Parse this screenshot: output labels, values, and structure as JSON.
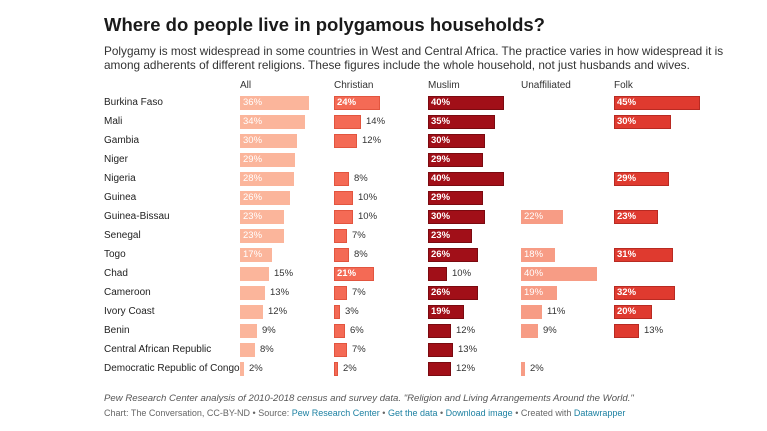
{
  "title": "Where do people live in polygamous households?",
  "subtitle": "Polygamy is most widespread in some countries in West and Central Africa. The practice varies in how widespread it is among adherents of different religions. These figures include the whole household, not just husbands and wives.",
  "notes": "Pew Research Center analysis of 2010-2018 census and survey data. \"Religion and Living Arrangements Around the World.\"",
  "credits": {
    "prefix": "Chart: The Conversation, CC-BY-ND • Source: ",
    "source_link": "Pew Research Center",
    "sep1": " • ",
    "get_data": "Get the data",
    "sep2": " • ",
    "download": "Download image",
    "sep3": " • Created with ",
    "datawrapper": "Datawrapper"
  },
  "colors": {
    "All": "#fbb59b",
    "Christian": "#f46a55",
    "Muslim": "#a10f18",
    "Unaffiliated": "#f79c85",
    "Folk": "#df3a2f",
    "link": "#1d81a2"
  },
  "chart_data": {
    "type": "bar",
    "unit": "%",
    "categories": [
      "Burkina Faso",
      "Mali",
      "Gambia",
      "Niger",
      "Nigeria",
      "Guinea",
      "Guinea-Bissau",
      "Senegal",
      "Togo",
      "Chad",
      "Cameroon",
      "Ivory Coast",
      "Benin",
      "Central African Republic",
      "Democratic Republic of Congo"
    ],
    "series": [
      {
        "name": "All",
        "values": [
          36,
          34,
          30,
          29,
          28,
          26,
          23,
          23,
          17,
          15,
          13,
          12,
          9,
          8,
          2
        ]
      },
      {
        "name": "Christian",
        "values": [
          24,
          14,
          12,
          null,
          8,
          10,
          10,
          7,
          8,
          21,
          7,
          3,
          6,
          7,
          2
        ]
      },
      {
        "name": "Muslim",
        "values": [
          40,
          35,
          30,
          29,
          40,
          29,
          30,
          23,
          26,
          10,
          26,
          19,
          12,
          13,
          12
        ]
      },
      {
        "name": "Unaffiliated",
        "values": [
          null,
          null,
          null,
          null,
          null,
          null,
          22,
          null,
          18,
          40,
          19,
          11,
          9,
          null,
          2
        ]
      },
      {
        "name": "Folk",
        "values": [
          45,
          30,
          null,
          null,
          29,
          null,
          23,
          null,
          31,
          null,
          32,
          20,
          13,
          null,
          null
        ]
      }
    ],
    "xlim": [
      0,
      45
    ],
    "grid": false,
    "legend": "none"
  }
}
